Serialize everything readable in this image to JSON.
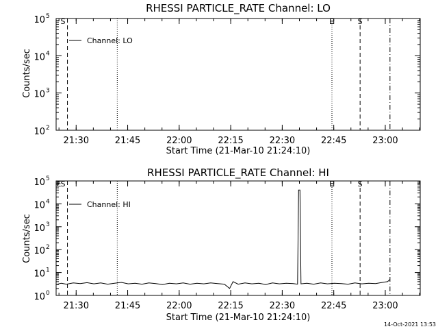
{
  "footer": {
    "timestamp": "14-Oct-2021 13:53"
  },
  "chart_data": [
    {
      "type": "line",
      "title": "RHESSI PARTICLE_RATE Channel: LO",
      "xlabel": "Start Time (21-Mar-10 21:24:10)",
      "ylabel": "Counts/sec",
      "x_unit": "minutes after 21:24:10",
      "xlim": [
        0,
        106
      ],
      "ylim": [
        100,
        100000
      ],
      "yscale": "log",
      "x_ticks": [
        {
          "label": "21:30",
          "value": 5.83
        },
        {
          "label": "21:45",
          "value": 20.83
        },
        {
          "label": "22:00",
          "value": 35.83
        },
        {
          "label": "22:15",
          "value": 50.83
        },
        {
          "label": "22:30",
          "value": 65.83
        },
        {
          "label": "22:45",
          "value": 80.83
        },
        {
          "label": "23:00",
          "value": 95.83
        }
      ],
      "y_ticks": [
        {
          "value": 100,
          "base": "10",
          "exp": "2"
        },
        {
          "value": 1000,
          "base": "10",
          "exp": "3"
        },
        {
          "value": 10000,
          "base": "10",
          "exp": "4"
        },
        {
          "value": 100000,
          "base": "10",
          "exp": "5"
        }
      ],
      "legend": [
        {
          "label": "Channel: LO",
          "position": "top-left"
        }
      ],
      "series": [],
      "markers": [
        {
          "x": 3.3,
          "style": "dashed",
          "label": ""
        },
        {
          "x": 17.8,
          "style": "dotted",
          "label": ""
        },
        {
          "x": 80.3,
          "style": "dotted",
          "label": ""
        },
        {
          "x": 88.5,
          "style": "dashed",
          "label": ""
        },
        {
          "x": 97.2,
          "style": "dashdot",
          "label": ""
        }
      ],
      "marker_labels": [
        {
          "text": "S",
          "x": 1.5
        },
        {
          "text": "E",
          "x": 79.7
        },
        {
          "text": "S",
          "x": 88.0
        }
      ]
    },
    {
      "type": "line",
      "title": "RHESSI PARTICLE_RATE Channel: HI",
      "xlabel": "Start Time (21-Mar-10 21:24:10)",
      "ylabel": "Counts/sec",
      "x_unit": "minutes after 21:24:10",
      "xlim": [
        0,
        106
      ],
      "ylim": [
        1,
        100000
      ],
      "yscale": "log",
      "x_ticks": [
        {
          "label": "21:30",
          "value": 5.83
        },
        {
          "label": "21:45",
          "value": 20.83
        },
        {
          "label": "22:00",
          "value": 35.83
        },
        {
          "label": "22:15",
          "value": 50.83
        },
        {
          "label": "22:30",
          "value": 65.83
        },
        {
          "label": "22:45",
          "value": 80.83
        },
        {
          "label": "23:00",
          "value": 95.83
        }
      ],
      "y_ticks": [
        {
          "value": 1,
          "base": "10",
          "exp": "0"
        },
        {
          "value": 10,
          "base": "10",
          "exp": "1"
        },
        {
          "value": 100,
          "base": "10",
          "exp": "2"
        },
        {
          "value": 1000,
          "base": "10",
          "exp": "3"
        },
        {
          "value": 10000,
          "base": "10",
          "exp": "4"
        },
        {
          "value": 100000,
          "base": "10",
          "exp": "5"
        }
      ],
      "legend": [
        {
          "label": "Channel: HI",
          "position": "top-left"
        }
      ],
      "series": [
        {
          "x": [
            0,
            1.5,
            3,
            5,
            7,
            9,
            11,
            13,
            15,
            17,
            19,
            21,
            23,
            25,
            27,
            29,
            31,
            33,
            35,
            37,
            39,
            41,
            43,
            45,
            47,
            49,
            50.5,
            51.5,
            53,
            55,
            57,
            59,
            61,
            63,
            65,
            67,
            69,
            70.3,
            70.6,
            71.0,
            71.3,
            73,
            75,
            77,
            79,
            81,
            83,
            85,
            87,
            89,
            91,
            93,
            95,
            96.5,
            97.2
          ],
          "y": [
            3.0,
            3.4,
            3.1,
            3.5,
            3.3,
            3.6,
            3.2,
            3.5,
            3.1,
            3.4,
            3.7,
            3.2,
            3.4,
            3.1,
            3.5,
            3.3,
            3.0,
            3.4,
            3.2,
            3.5,
            3.1,
            3.4,
            3.2,
            3.5,
            3.3,
            3.1,
            2.0,
            4.0,
            3.1,
            3.5,
            3.2,
            3.4,
            3.0,
            3.5,
            3.2,
            3.4,
            3.3,
            3.1,
            40000,
            40000,
            3.2,
            3.4,
            3.1,
            3.5,
            3.2,
            3.4,
            3.3,
            3.1,
            3.5,
            3.2,
            3.4,
            3.3,
            3.7,
            4.0,
            5.0
          ]
        }
      ],
      "markers": [
        {
          "x": 3.3,
          "style": "dashed",
          "label": ""
        },
        {
          "x": 17.8,
          "style": "dotted",
          "label": ""
        },
        {
          "x": 80.3,
          "style": "dotted",
          "label": ""
        },
        {
          "x": 88.5,
          "style": "dashed",
          "label": ""
        },
        {
          "x": 97.2,
          "style": "dashdot",
          "label": ""
        }
      ],
      "marker_labels": [
        {
          "text": "E",
          "x": 0.3
        },
        {
          "text": "S",
          "x": 1.5
        },
        {
          "text": "E",
          "x": 79.7
        },
        {
          "text": "S",
          "x": 88.0
        }
      ]
    }
  ]
}
